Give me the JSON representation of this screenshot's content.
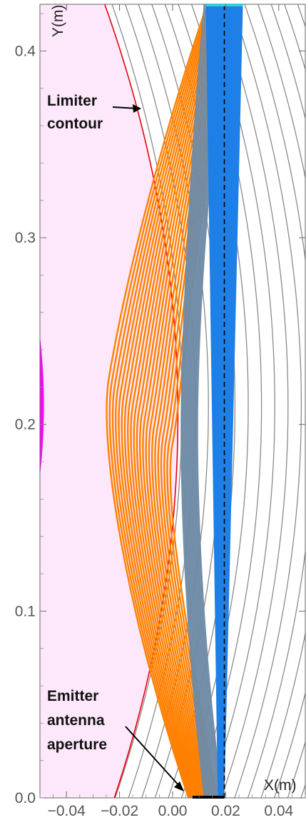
{
  "chart_data": {
    "type": "line",
    "xlabel": "X(m)",
    "ylabel": "Y(m)",
    "xlim": [
      -0.05,
      0.05
    ],
    "ylim": [
      0.0,
      0.425
    ],
    "x_ticks": [
      -0.04,
      -0.02,
      0.0,
      0.02,
      0.04
    ],
    "x_tick_labels": [
      "−0.04",
      "−0.02",
      "0.00",
      "0.02",
      "0.04"
    ],
    "y_ticks": [
      0.0,
      0.1,
      0.2,
      0.3,
      0.4
    ],
    "y_tick_labels": [
      "0.0",
      "0.1",
      "0.2",
      "0.3",
      "0.4"
    ],
    "grid": false,
    "colors": {
      "region_fill": "#fde8fb",
      "plasma_edge": "#ff00ff",
      "limiter": "#e8000b",
      "flux_surfaces": "#8a8a8a",
      "orange_rays": "#ff8000",
      "gray_rays": "#6e8aa6",
      "blue_beam": "#1e7fe6",
      "target": "#2fd0e0",
      "aperture": "#000000"
    },
    "annotations": {
      "limiter_label": [
        "Limiter",
        "contour"
      ],
      "emitter_label": [
        "Emitter",
        "antenna",
        "aperture"
      ]
    },
    "limiter_contour": [
      {
        "x": -0.023,
        "y": 0.0
      },
      {
        "x": -0.013,
        "y": 0.05
      },
      {
        "x": -0.0052,
        "y": 0.1
      },
      {
        "x": 0.0,
        "y": 0.15
      },
      {
        "x": 0.002,
        "y": 0.2
      },
      {
        "x": 0.0,
        "y": 0.25
      },
      {
        "x": -0.0052,
        "y": 0.3
      },
      {
        "x": -0.013,
        "y": 0.35
      },
      {
        "x": -0.023,
        "y": 0.4
      },
      {
        "x": -0.03,
        "y": 0.425
      }
    ],
    "flux_surfaces": {
      "description_points": "parabolic arcs x = c - k*(y-0.21)^2",
      "center_offsets": [
        0.0035,
        0.0085,
        0.0135,
        0.0185,
        0.0235,
        0.0285,
        0.0335,
        0.0385,
        0.0435,
        0.0485,
        0.0535,
        0.0585,
        0.0635,
        0.0685,
        0.0735,
        0.0785
      ]
    },
    "plasma_edge": {
      "center_y": 0.21,
      "half_height": 0.075,
      "max_x": -0.0485
    },
    "ray_bundle_orange": {
      "start_x_range": [
        0.006,
        0.0165
      ],
      "end_x_range": [
        0.013,
        0.026
      ],
      "turning_y_range": [
        0.19,
        0.225
      ],
      "turning_x_range": [
        -0.024,
        0.0
      ],
      "count": 22
    },
    "ray_bundle_gray": {
      "start_x_range": [
        0.012,
        0.0185
      ],
      "end_x_range": [
        0.012,
        0.021
      ],
      "turning_x_range": [
        0.0035,
        0.0095
      ],
      "count": 14
    },
    "blue_beam": {
      "bottom_x": [
        0.017,
        0.0195
      ],
      "top_x": [
        0.0125,
        0.0265
      ]
    },
    "aperture_segment": {
      "x": [
        0.0075,
        0.0195
      ],
      "y": 0.0
    },
    "target_segment": {
      "x": [
        0.0125,
        0.0265
      ],
      "y": 0.425
    },
    "dashed_line": {
      "x": 0.0195,
      "y": [
        0.0,
        0.425
      ]
    }
  }
}
